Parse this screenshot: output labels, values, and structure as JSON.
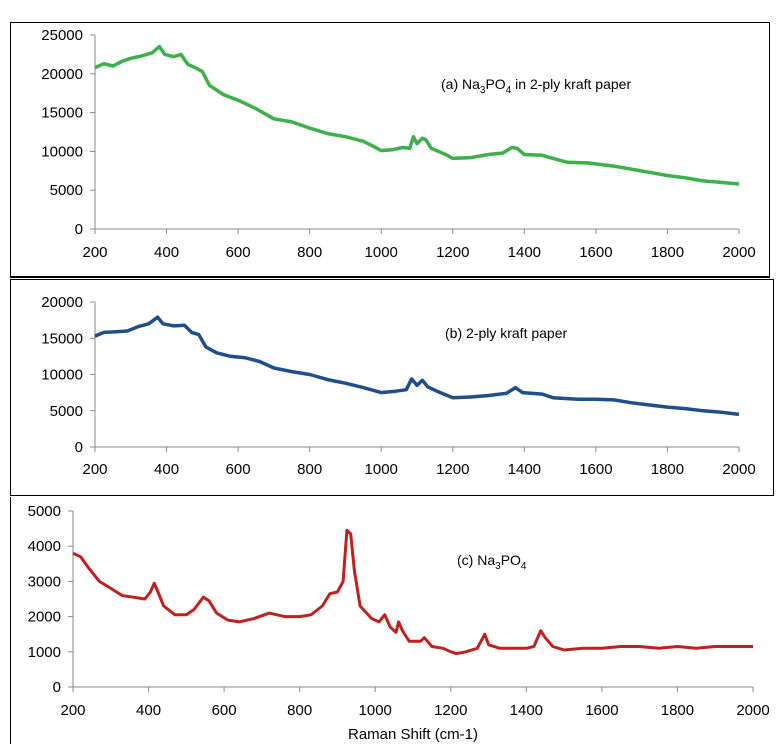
{
  "chart_data": [
    {
      "type": "line",
      "annotation": {
        "pre": "(a) Na",
        "sub1": "3",
        "mid": "PO",
        "sub2": "4",
        "post": " in 2-ply kraft paper"
      },
      "xlim": [
        200,
        2000
      ],
      "ylim": [
        0,
        25000
      ],
      "x_ticks": [
        "200",
        "400",
        "600",
        "800",
        "1000",
        "1200",
        "1400",
        "1600",
        "1800",
        "2000"
      ],
      "y_ticks": [
        "0",
        "5000",
        "10000",
        "15000",
        "20000",
        "25000"
      ],
      "xlabel": "",
      "ylabel": "",
      "grid": false,
      "series": [
        {
          "color": "#3cb04a",
          "points": [
            [
              200,
              20800
            ],
            [
              225,
              21300
            ],
            [
              250,
              21000
            ],
            [
              275,
              21600
            ],
            [
              300,
              22000
            ],
            [
              330,
              22300
            ],
            [
              360,
              22700
            ],
            [
              380,
              23500
            ],
            [
              395,
              22500
            ],
            [
              420,
              22200
            ],
            [
              440,
              22500
            ],
            [
              460,
              21200
            ],
            [
              480,
              20800
            ],
            [
              500,
              20300
            ],
            [
              520,
              18500
            ],
            [
              560,
              17300
            ],
            [
              600,
              16600
            ],
            [
              650,
              15500
            ],
            [
              700,
              14200
            ],
            [
              750,
              13800
            ],
            [
              800,
              13000
            ],
            [
              850,
              12300
            ],
            [
              900,
              11900
            ],
            [
              950,
              11300
            ],
            [
              980,
              10600
            ],
            [
              1000,
              10100
            ],
            [
              1030,
              10200
            ],
            [
              1060,
              10500
            ],
            [
              1080,
              10400
            ],
            [
              1090,
              11900
            ],
            [
              1100,
              11000
            ],
            [
              1115,
              11700
            ],
            [
              1125,
              11500
            ],
            [
              1140,
              10400
            ],
            [
              1180,
              9600
            ],
            [
              1200,
              9100
            ],
            [
              1250,
              9200
            ],
            [
              1300,
              9600
            ],
            [
              1340,
              9800
            ],
            [
              1365,
              10500
            ],
            [
              1380,
              10400
            ],
            [
              1400,
              9600
            ],
            [
              1450,
              9500
            ],
            [
              1480,
              9100
            ],
            [
              1520,
              8600
            ],
            [
              1580,
              8500
            ],
            [
              1650,
              8100
            ],
            [
              1700,
              7700
            ],
            [
              1750,
              7300
            ],
            [
              1800,
              6900
            ],
            [
              1850,
              6600
            ],
            [
              1900,
              6200
            ],
            [
              1950,
              6000
            ],
            [
              2000,
              5800
            ]
          ]
        }
      ]
    },
    {
      "type": "line",
      "annotation": {
        "pre": "(b) 2-ply kraft paper",
        "sub1": "",
        "mid": "",
        "sub2": "",
        "post": ""
      },
      "xlim": [
        200,
        2000
      ],
      "ylim": [
        0,
        20000
      ],
      "x_ticks": [
        "200",
        "400",
        "600",
        "800",
        "1000",
        "1200",
        "1400",
        "1600",
        "1800",
        "2000"
      ],
      "y_ticks": [
        "0",
        "5000",
        "10000",
        "15000",
        "20000"
      ],
      "xlabel": "",
      "ylabel": "",
      "grid": false,
      "series": [
        {
          "color": "#1f4e8c",
          "points": [
            [
              200,
              15300
            ],
            [
              225,
              15800
            ],
            [
              260,
              15900
            ],
            [
              290,
              16000
            ],
            [
              320,
              16600
            ],
            [
              350,
              17000
            ],
            [
              375,
              17900
            ],
            [
              390,
              17000
            ],
            [
              420,
              16700
            ],
            [
              450,
              16800
            ],
            [
              470,
              15800
            ],
            [
              490,
              15500
            ],
            [
              510,
              13800
            ],
            [
              540,
              13000
            ],
            [
              580,
              12500
            ],
            [
              620,
              12300
            ],
            [
              660,
              11800
            ],
            [
              700,
              10900
            ],
            [
              750,
              10400
            ],
            [
              800,
              10000
            ],
            [
              850,
              9300
            ],
            [
              900,
              8800
            ],
            [
              950,
              8200
            ],
            [
              1000,
              7500
            ],
            [
              1040,
              7700
            ],
            [
              1070,
              7900
            ],
            [
              1085,
              9400
            ],
            [
              1100,
              8500
            ],
            [
              1115,
              9200
            ],
            [
              1130,
              8300
            ],
            [
              1160,
              7600
            ],
            [
              1200,
              6800
            ],
            [
              1250,
              6900
            ],
            [
              1300,
              7100
            ],
            [
              1350,
              7400
            ],
            [
              1375,
              8200
            ],
            [
              1395,
              7500
            ],
            [
              1450,
              7300
            ],
            [
              1480,
              6800
            ],
            [
              1550,
              6600
            ],
            [
              1600,
              6600
            ],
            [
              1650,
              6500
            ],
            [
              1700,
              6100
            ],
            [
              1750,
              5800
            ],
            [
              1800,
              5500
            ],
            [
              1850,
              5300
            ],
            [
              1900,
              5000
            ],
            [
              1950,
              4800
            ],
            [
              2000,
              4500
            ]
          ]
        }
      ]
    },
    {
      "type": "line",
      "annotation": {
        "pre": "(c) Na",
        "sub1": "3",
        "mid": "PO",
        "sub2": "4",
        "post": ""
      },
      "xlim": [
        200,
        2000
      ],
      "ylim": [
        0,
        5000
      ],
      "x_ticks": [
        "200",
        "400",
        "600",
        "800",
        "1000",
        "1200",
        "1400",
        "1600",
        "1800",
        "2000"
      ],
      "y_ticks": [
        "0",
        "1000",
        "2000",
        "3000",
        "4000",
        "5000"
      ],
      "xlabel": "Raman Shift (cm-1)",
      "ylabel": "",
      "grid": false,
      "series": [
        {
          "color": "#c0201e",
          "points": [
            [
              200,
              3800
            ],
            [
              220,
              3700
            ],
            [
              240,
              3400
            ],
            [
              270,
              3000
            ],
            [
              300,
              2800
            ],
            [
              330,
              2600
            ],
            [
              360,
              2550
            ],
            [
              390,
              2500
            ],
            [
              405,
              2700
            ],
            [
              415,
              2950
            ],
            [
              425,
              2700
            ],
            [
              440,
              2300
            ],
            [
              470,
              2050
            ],
            [
              500,
              2050
            ],
            [
              520,
              2200
            ],
            [
              545,
              2550
            ],
            [
              560,
              2450
            ],
            [
              580,
              2100
            ],
            [
              610,
              1900
            ],
            [
              640,
              1850
            ],
            [
              680,
              1950
            ],
            [
              720,
              2100
            ],
            [
              760,
              2000
            ],
            [
              800,
              2000
            ],
            [
              830,
              2050
            ],
            [
              860,
              2300
            ],
            [
              880,
              2650
            ],
            [
              900,
              2700
            ],
            [
              915,
              3000
            ],
            [
              925,
              4450
            ],
            [
              935,
              4350
            ],
            [
              945,
              3300
            ],
            [
              960,
              2300
            ],
            [
              990,
              1950
            ],
            [
              1010,
              1850
            ],
            [
              1025,
              2050
            ],
            [
              1040,
              1700
            ],
            [
              1055,
              1550
            ],
            [
              1062,
              1850
            ],
            [
              1072,
              1600
            ],
            [
              1090,
              1300
            ],
            [
              1120,
              1300
            ],
            [
              1130,
              1400
            ],
            [
              1150,
              1150
            ],
            [
              1180,
              1100
            ],
            [
              1200,
              1000
            ],
            [
              1215,
              950
            ],
            [
              1240,
              1000
            ],
            [
              1270,
              1100
            ],
            [
              1290,
              1500
            ],
            [
              1300,
              1200
            ],
            [
              1330,
              1100
            ],
            [
              1360,
              1100
            ],
            [
              1400,
              1100
            ],
            [
              1420,
              1150
            ],
            [
              1438,
              1600
            ],
            [
              1450,
              1400
            ],
            [
              1470,
              1150
            ],
            [
              1500,
              1050
            ],
            [
              1550,
              1100
            ],
            [
              1600,
              1100
            ],
            [
              1650,
              1150
            ],
            [
              1700,
              1150
            ],
            [
              1750,
              1100
            ],
            [
              1800,
              1150
            ],
            [
              1850,
              1100
            ],
            [
              1900,
              1150
            ],
            [
              1950,
              1150
            ],
            [
              2000,
              1150
            ]
          ]
        }
      ]
    }
  ]
}
